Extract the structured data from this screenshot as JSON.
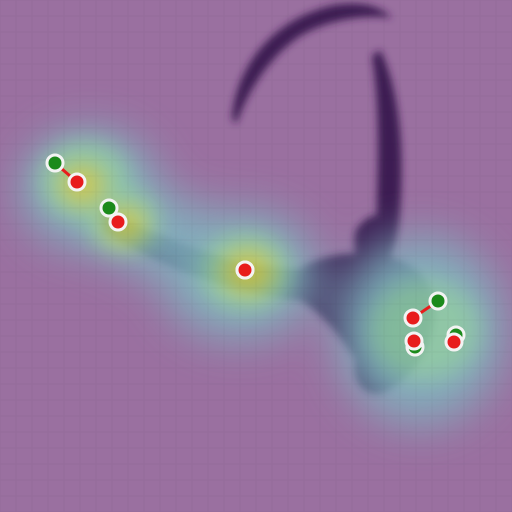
{
  "scene": {
    "subject": "fish-silhouette-with-heatmap-overlay",
    "colors": {
      "background": "#9a70a0",
      "fish": "#3d1e52",
      "heat_low": "#7fb6c0",
      "heat_mid": "#8fd6a8",
      "heat_high": "#d6d84a",
      "ground_truth_marker": "#1b8a1b",
      "prediction_marker": "#e81c1c",
      "marker_outline": "#f3f3f3"
    },
    "keypoints": [
      {
        "id": "kp-1",
        "ground_truth": [
          55,
          163
        ],
        "prediction": [
          77,
          182
        ]
      },
      {
        "id": "kp-2",
        "ground_truth": [
          109,
          208
        ],
        "prediction": [
          118,
          222
        ]
      },
      {
        "id": "kp-3",
        "ground_truth": [
          245,
          270
        ],
        "prediction": [
          245,
          270
        ]
      },
      {
        "id": "kp-4",
        "ground_truth": [
          438,
          301
        ],
        "prediction": [
          413,
          318
        ]
      },
      {
        "id": "kp-5",
        "ground_truth": [
          415,
          347
        ],
        "prediction": [
          414,
          341
        ]
      },
      {
        "id": "kp-6",
        "ground_truth": [
          456,
          335
        ],
        "prediction": [
          454,
          342
        ]
      }
    ]
  }
}
